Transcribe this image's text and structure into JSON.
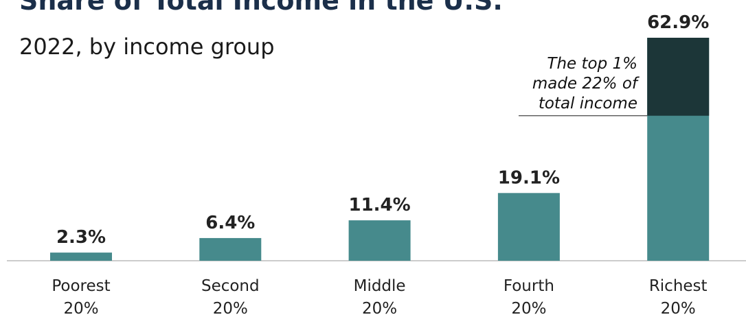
{
  "chart_data": {
    "type": "bar",
    "title": "Share of Total Income in the U.S.",
    "subtitle": "2022, by income group",
    "categories": [
      [
        "Poorest",
        "20%"
      ],
      [
        "Second",
        "20%"
      ],
      [
        "Middle",
        "20%"
      ],
      [
        "Fourth",
        "20%"
      ],
      [
        "Richest",
        "20%"
      ]
    ],
    "values": [
      2.3,
      6.4,
      11.4,
      19.1,
      62.9
    ],
    "value_labels": [
      "2.3%",
      "6.4%",
      "11.4%",
      "19.1%",
      "62.9%"
    ],
    "color": "#468a8c",
    "highlight": {
      "category": 4,
      "value": 22,
      "color": "#1c3638"
    },
    "annotation": [
      "The top 1%",
      "made 22% of",
      "total income"
    ]
  }
}
